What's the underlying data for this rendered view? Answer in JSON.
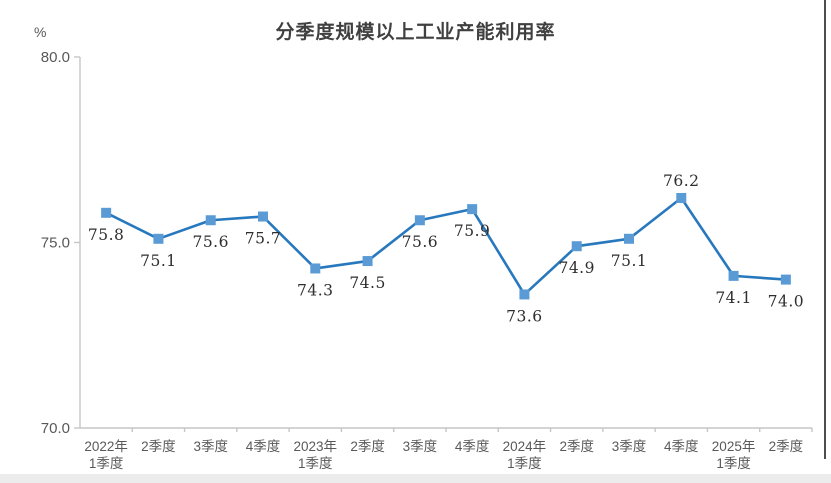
{
  "page": {
    "right_edge_color": "#4d4d4d",
    "bottom_strip_color": "#ececec"
  },
  "chart_data": {
    "type": "line",
    "title": "分季度规模以上工业产能利用率",
    "ylabel": "%",
    "categories": [
      [
        "2022年",
        "1季度"
      ],
      [
        "2季度"
      ],
      [
        "3季度"
      ],
      [
        "4季度"
      ],
      [
        "2023年",
        "1季度"
      ],
      [
        "2季度"
      ],
      [
        "3季度"
      ],
      [
        "4季度"
      ],
      [
        "2024年",
        "1季度"
      ],
      [
        "2季度"
      ],
      [
        "3季度"
      ],
      [
        "4季度"
      ],
      [
        "2025年",
        "1季度"
      ],
      [
        "2季度"
      ]
    ],
    "series": [
      {
        "name": "产能利用率",
        "values": [
          75.8,
          75.1,
          75.6,
          75.7,
          74.3,
          74.5,
          75.6,
          75.9,
          73.6,
          74.9,
          75.1,
          76.2,
          74.1,
          74.0
        ],
        "data_labels": [
          "75.8",
          "75.1",
          "75.6",
          "75.7",
          "74.3",
          "74.5",
          "75.6",
          "75.9",
          "73.6",
          "74.9",
          "75.1",
          "76.2",
          "74.1",
          "74.0"
        ],
        "label_positions": [
          "below",
          "below",
          "below",
          "below",
          "below",
          "below",
          "below",
          "below",
          "below",
          "below",
          "below",
          "above",
          "below",
          "below"
        ]
      }
    ],
    "ylim": [
      70.0,
      80.0
    ],
    "yticks": [
      80.0,
      75.0,
      70.0
    ],
    "ytick_labels": [
      "80.0",
      "75.0",
      "70.0"
    ],
    "grid": false,
    "legend": "none",
    "colors": {
      "line": "#2878be",
      "marker": "#5b9bd5",
      "axis": "#c6c6c6",
      "tick_text": "#595959",
      "data_label_text": "#2e2e2e",
      "title_text": "#404040"
    }
  }
}
